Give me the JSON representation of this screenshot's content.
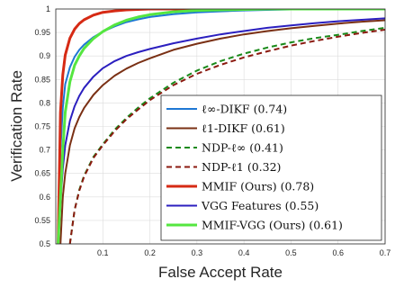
{
  "chart_data": {
    "type": "line",
    "title": "",
    "xlabel": "False Accept Rate",
    "ylabel": "Verification Rate",
    "xlim": [
      0,
      0.7
    ],
    "ylim": [
      0.5,
      1
    ],
    "x_ticks": [
      "0.1",
      "0.2",
      "0.3",
      "0.4",
      "0.5",
      "0.6",
      "0.7"
    ],
    "y_ticks": [
      "0.5",
      "0.55",
      "0.6",
      "0.65",
      "0.7",
      "0.75",
      "0.8",
      "0.85",
      "0.9",
      "0.95",
      "1"
    ],
    "grid": true,
    "legend_position": "bottom-right",
    "x": [
      0.005,
      0.01,
      0.015,
      0.02,
      0.03,
      0.04,
      0.05,
      0.06,
      0.08,
      0.1,
      0.125,
      0.15,
      0.175,
      0.2,
      0.25,
      0.3,
      0.35,
      0.4,
      0.45,
      0.5,
      0.55,
      0.6,
      0.65,
      0.7
    ],
    "series": [
      {
        "name": "ℓ∞-DIKF (0.74)",
        "color": "#1f77d4",
        "dash": "solid",
        "values": [
          0.5,
          0.7,
          0.79,
          0.84,
          0.876,
          0.898,
          0.913,
          0.924,
          0.94,
          0.952,
          0.963,
          0.972,
          0.978,
          0.983,
          0.989,
          0.993,
          0.995,
          0.997,
          0.998,
          0.999,
          0.999,
          1.0,
          1.0,
          1.0
        ]
      },
      {
        "name": "ℓ1-DIKF (0.61)",
        "color": "#7a3014",
        "dash": "solid",
        "values": [
          null,
          0.5,
          0.6,
          0.65,
          0.71,
          0.746,
          0.77,
          0.789,
          0.817,
          0.838,
          0.858,
          0.873,
          0.885,
          0.895,
          0.913,
          0.926,
          0.937,
          0.946,
          0.953,
          0.959,
          0.964,
          0.969,
          0.973,
          0.976
        ]
      },
      {
        "name": "NDP-ℓ∞ (0.41)",
        "color": "#1a8a1a",
        "dash": "dashed",
        "values": [
          null,
          null,
          null,
          null,
          0.5,
          0.572,
          0.615,
          0.645,
          0.685,
          0.712,
          0.743,
          0.768,
          0.79,
          0.81,
          0.843,
          0.869,
          0.889,
          0.905,
          0.918,
          0.929,
          0.938,
          0.945,
          0.953,
          0.96
        ]
      },
      {
        "name": "NDP-ℓ1 (0.32)",
        "color": "#8b1a10",
        "dash": "dashed",
        "values": [
          null,
          null,
          null,
          null,
          0.5,
          0.572,
          0.613,
          0.643,
          0.683,
          0.71,
          0.74,
          0.765,
          0.786,
          0.806,
          0.838,
          0.862,
          0.881,
          0.897,
          0.91,
          0.922,
          0.932,
          0.941,
          0.949,
          0.956
        ]
      },
      {
        "name": "MMIF (Ours) (0.78)",
        "color": "#d62a14",
        "dash": "solid",
        "values": [
          0.5,
          0.78,
          0.86,
          0.902,
          0.938,
          0.957,
          0.969,
          0.977,
          0.987,
          0.993,
          0.996,
          0.998,
          0.999,
          1.0,
          1.0,
          1.0,
          1.0,
          1.0,
          1.0,
          1.0,
          1.0,
          1.0,
          1.0,
          1.0
        ]
      },
      {
        "name": "VGG Features (0.55)",
        "color": "#2b1fbf",
        "dash": "solid",
        "values": [
          0.5,
          0.59,
          0.66,
          0.71,
          0.762,
          0.793,
          0.815,
          0.832,
          0.856,
          0.874,
          0.889,
          0.9,
          0.908,
          0.915,
          0.927,
          0.937,
          0.946,
          0.953,
          0.96,
          0.965,
          0.97,
          0.974,
          0.977,
          0.98
        ]
      },
      {
        "name": "MMIF-VGG (Ours) (0.61)",
        "color": "#55e640",
        "dash": "solid",
        "values": [
          0.5,
          0.6,
          0.7,
          0.78,
          0.845,
          0.88,
          0.9,
          0.916,
          0.937,
          0.952,
          0.966,
          0.976,
          0.983,
          0.988,
          0.994,
          0.997,
          0.998,
          0.999,
          1.0,
          1.0,
          1.0,
          1.0,
          1.0,
          1.0
        ]
      }
    ]
  }
}
